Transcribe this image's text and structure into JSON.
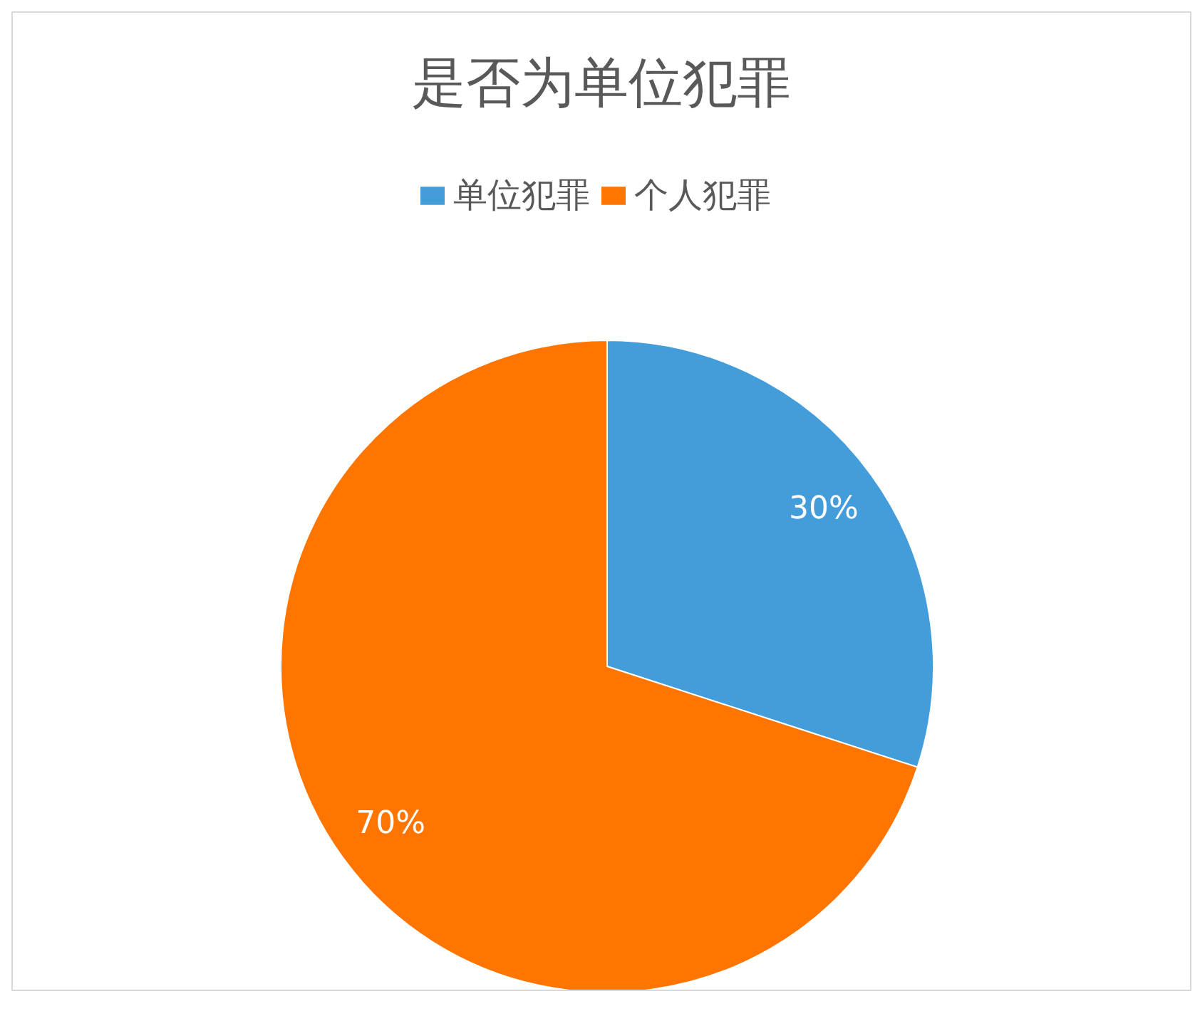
{
  "chart_data": {
    "type": "pie",
    "title": "是否为单位犯罪",
    "categories": [
      "单位犯罪",
      "个人犯罪"
    ],
    "values": [
      30,
      70
    ],
    "colors": [
      "#449ddb",
      "#ff7500"
    ],
    "value_labels": [
      "30%",
      "70%"
    ],
    "legend": "top"
  }
}
